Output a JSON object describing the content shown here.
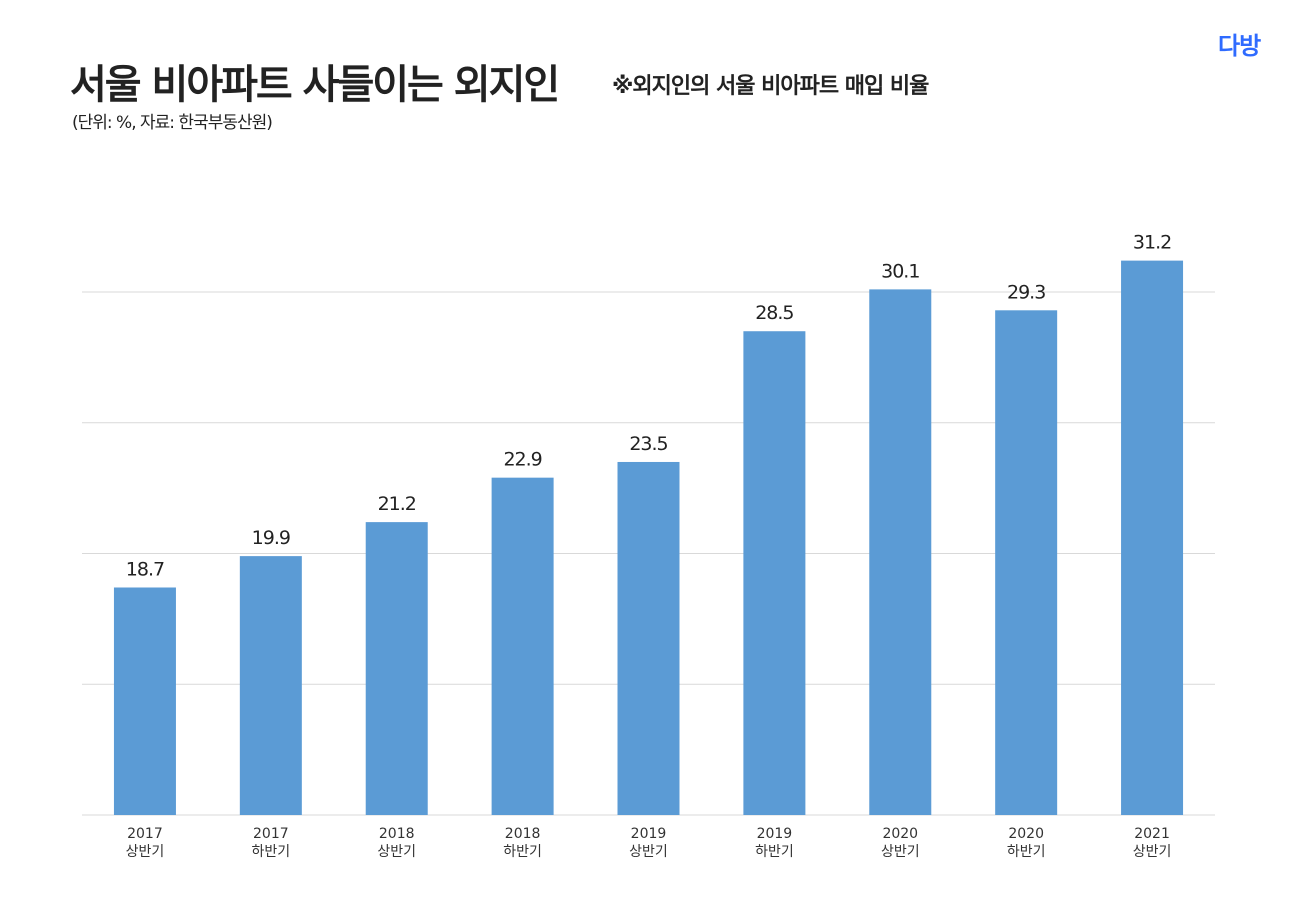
{
  "title": "서울 비아파트 사들이는 외지인",
  "subtitle": "※외지인의 서울 비아파트 매입 비율",
  "unit_note": "(단위: %, 자료: 한국부동산원)",
  "logo": "다방",
  "colors": {
    "bar": "#5b9bd5",
    "grid": "#d9d9d9",
    "logo": "#2f6bff"
  },
  "chart_data": {
    "type": "bar",
    "categories": [
      [
        "2017",
        "상반기"
      ],
      [
        "2017",
        "하반기"
      ],
      [
        "2018",
        "상반기"
      ],
      [
        "2018",
        "하반기"
      ],
      [
        "2019",
        "상반기"
      ],
      [
        "2019",
        "하반기"
      ],
      [
        "2020",
        "상반기"
      ],
      [
        "2020",
        "하반기"
      ],
      [
        "2021",
        "상반기"
      ]
    ],
    "values": [
      18.7,
      19.9,
      21.2,
      22.9,
      23.5,
      28.5,
      30.1,
      29.3,
      31.2
    ],
    "ylim": [
      10,
      32
    ],
    "gridlines": [
      15,
      20,
      25,
      30
    ],
    "grid": true,
    "y_tick_labels_shown": false,
    "data_labels": true
  }
}
